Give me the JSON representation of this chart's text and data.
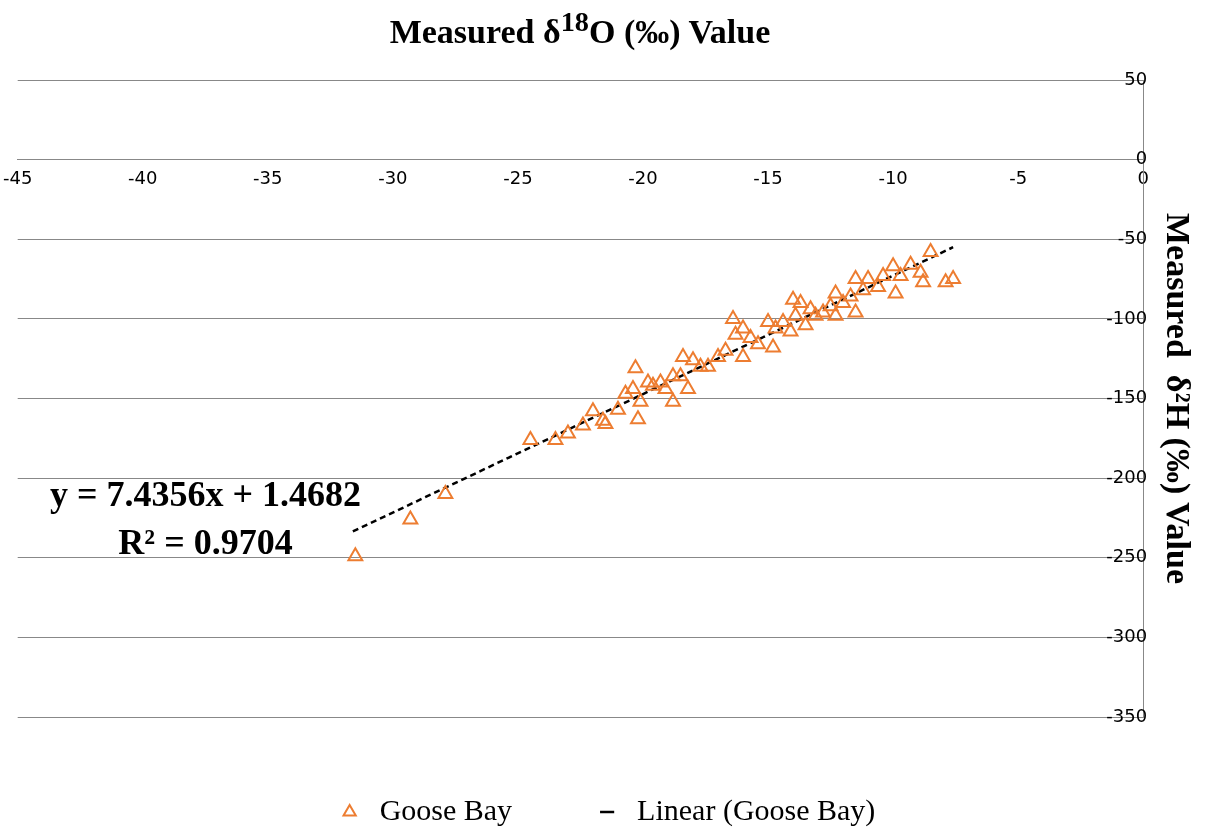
{
  "chart_data": {
    "type": "scatter",
    "xlabel": "Measured  δ$^{18}$O (‰) Value",
    "ylabel": "Measured  δ²H (‰) Value",
    "annotations": [
      "y = 7.4356x + 1.4682",
      "R² = 0.9704"
    ],
    "xlim": [
      -45,
      0
    ],
    "xticks": [
      -45,
      -40,
      -35,
      -30,
      -25,
      -20,
      -15,
      -10,
      -5,
      0
    ],
    "ylim": [
      -350,
      50
    ],
    "yticks": [
      50,
      0,
      -50,
      -100,
      -150,
      -200,
      -250,
      -300,
      -350
    ],
    "grid": "y",
    "legend": "bottom",
    "marker": "triangle",
    "series": [
      {
        "name": "Goose Bay",
        "color": "#ed7d31",
        "x": [
          -31.5,
          -29.3,
          -27.9,
          -24.5,
          -23.5,
          -23.0,
          -22.4,
          -22.0,
          -21.6,
          -21.5,
          -21.0,
          -20.7,
          -20.4,
          -20.3,
          -20.2,
          -20.1,
          -19.8,
          -19.6,
          -19.3,
          -19.1,
          -18.8,
          -18.8,
          -18.5,
          -18.4,
          -18.2,
          -18.0,
          -17.7,
          -17.4,
          -17.0,
          -16.7,
          -16.4,
          -16.3,
          -16.0,
          -16.0,
          -15.7,
          -15.4,
          -15.0,
          -14.8,
          -14.7,
          -14.4,
          -14.1,
          -14.0,
          -13.9,
          -13.7,
          -13.5,
          -13.3,
          -13.1,
          -12.8,
          -12.5,
          -12.3,
          -12.3,
          -12.0,
          -11.7,
          -11.5,
          -11.5,
          -11.2,
          -11.0,
          -10.6,
          -10.4,
          -10.0,
          -9.9,
          -9.7,
          -9.3,
          -8.9,
          -8.8,
          -8.5,
          -7.9,
          -7.6
        ],
        "values": [
          -249,
          -226,
          -210,
          -176,
          -176,
          -172,
          -167,
          -158,
          -164,
          -166,
          -157,
          -147,
          -144,
          -131,
          -163,
          -152,
          -140,
          -142,
          -140,
          -144,
          -136,
          -152,
          -136,
          -124,
          -144,
          -126,
          -130,
          -130,
          -124,
          -120,
          -100,
          -110,
          -106,
          -124,
          -112,
          -116,
          -102,
          -118,
          -106,
          -102,
          -108,
          -88,
          -98,
          -90,
          -104,
          -94,
          -98,
          -96,
          -92,
          -84,
          -98,
          -90,
          -86,
          -75,
          -96,
          -82,
          -75,
          -80,
          -73,
          -67,
          -84,
          -73,
          -66,
          -71,
          -77,
          -58,
          -77,
          -75
        ]
      },
      {
        "name": "Linear (Goose Bay)",
        "type": "line",
        "color": "#000000",
        "line_style": "dashed",
        "marker": "none",
        "x": [
          -31.6,
          -7.6
        ],
        "values": [
          -233.5,
          -55.0
        ]
      }
    ]
  }
}
